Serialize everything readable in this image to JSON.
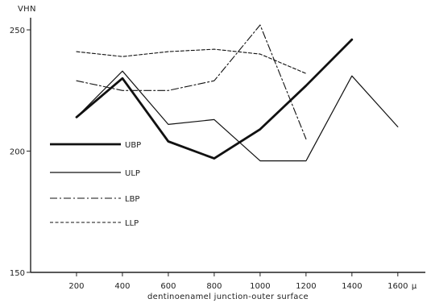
{
  "chart_data": {
    "type": "line",
    "title": "",
    "ylabel": "VHN",
    "xlabel": "dentinoenamel junction-outer surface",
    "x_unit": "μ",
    "xlim": [
      0,
      1720
    ],
    "ylim": [
      150,
      255
    ],
    "x_ticks": [
      200,
      400,
      600,
      800,
      1000,
      1200,
      1400,
      1600
    ],
    "y_ticks": [
      150,
      200,
      250
    ],
    "grid": false,
    "legend_position": "middle-left",
    "series": [
      {
        "name": "UBP",
        "style": "thick-solid",
        "x": [
          200,
          400,
          600,
          800,
          1000,
          1200,
          1400
        ],
        "y": [
          214,
          230,
          204,
          197,
          209,
          227,
          246
        ]
      },
      {
        "name": "ULP",
        "style": "solid",
        "x": [
          200,
          400,
          600,
          800,
          1000,
          1200,
          1400,
          1600
        ],
        "y": [
          214,
          233,
          211,
          213,
          196,
          196,
          231,
          210
        ]
      },
      {
        "name": "LBP",
        "style": "dash-dot",
        "x": [
          200,
          400,
          600,
          800,
          1000,
          1200
        ],
        "y": [
          229,
          225,
          225,
          229,
          252,
          205
        ]
      },
      {
        "name": "LLP",
        "style": "dashed",
        "x": [
          200,
          400,
          600,
          800,
          1000,
          1200
        ],
        "y": [
          241,
          239,
          241,
          242,
          240,
          232
        ]
      }
    ]
  }
}
